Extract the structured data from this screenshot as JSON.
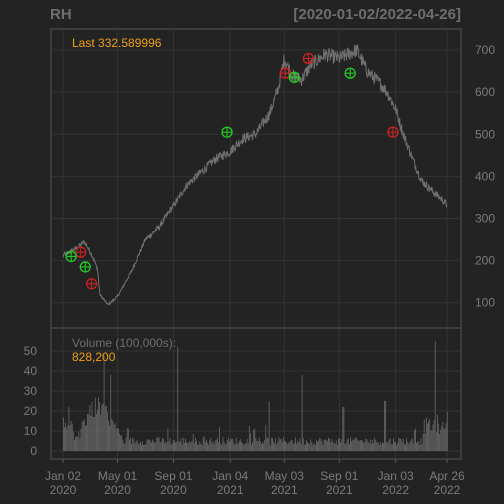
{
  "chart_data": [
    {
      "type": "line",
      "title": "RH",
      "date_range": "[2020-01-02/2022-04-26]",
      "annotation": "Last 332.589996",
      "ylim": [
        40,
        750
      ],
      "y_ticks": [
        100,
        200,
        300,
        400,
        500,
        600,
        700
      ],
      "grid": true,
      "x_dates": [
        "2020-01-02",
        "2020-02-01",
        "2020-02-18",
        "2020-03-05",
        "2020-03-18",
        "2020-03-23",
        "2020-04-10",
        "2020-05-01",
        "2020-06-01",
        "2020-07-01",
        "2020-08-01",
        "2020-08-25",
        "2020-09-01",
        "2020-10-01",
        "2020-11-01",
        "2020-12-01",
        "2021-01-04",
        "2021-02-01",
        "2021-03-01",
        "2021-04-01",
        "2021-04-20",
        "2021-05-03",
        "2021-05-20",
        "2021-06-10",
        "2021-07-01",
        "2021-08-01",
        "2021-09-01",
        "2021-09-20",
        "2021-10-10",
        "2021-11-01",
        "2021-12-01",
        "2021-12-15",
        "2022-01-03",
        "2022-01-20",
        "2022-02-10",
        "2022-03-01",
        "2022-03-20",
        "2022-04-10",
        "2022-04-26"
      ],
      "close": [
        212,
        230,
        245,
        215,
        180,
        120,
        95,
        115,
        175,
        250,
        280,
        320,
        330,
        380,
        410,
        440,
        460,
        490,
        500,
        550,
        610,
        680,
        640,
        630,
        665,
        690,
        680,
        690,
        700,
        650,
        620,
        600,
        560,
        500,
        440,
        390,
        370,
        350,
        332.59
      ],
      "buy_signals": [
        {
          "date": "2020-01-20",
          "price": 210
        },
        {
          "date": "2020-02-20",
          "price": 185
        },
        {
          "date": "2020-12-28",
          "price": 505
        },
        {
          "date": "2021-05-25",
          "price": 635
        },
        {
          "date": "2021-09-25",
          "price": 645
        }
      ],
      "sell_signals": [
        {
          "date": "2020-02-10",
          "price": 220
        },
        {
          "date": "2020-03-05",
          "price": 145
        },
        {
          "date": "2021-05-05",
          "price": 645
        },
        {
          "date": "2021-06-25",
          "price": 680
        },
        {
          "date": "2021-12-28",
          "price": 505
        }
      ]
    },
    {
      "type": "bar",
      "title": "Volume (100,000s):",
      "annotation": "828,200",
      "ylim": [
        0,
        55
      ],
      "y_ticks": [
        0,
        10,
        20,
        30,
        40,
        50
      ],
      "x_ticks": [
        {
          "date": "2020-01-02",
          "label": "Jan 02",
          "year": "2020"
        },
        {
          "date": "2020-05-01",
          "label": "May 01",
          "year": "2020"
        },
        {
          "date": "2020-09-01",
          "label": "Sep 01",
          "year": "2020"
        },
        {
          "date": "2021-01-04",
          "label": "Jan 04",
          "year": "2021"
        },
        {
          "date": "2021-05-03",
          "label": "May 03",
          "year": "2021"
        },
        {
          "date": "2021-09-01",
          "label": "Sep 01",
          "year": "2021"
        },
        {
          "date": "2022-01-03",
          "label": "Jan 03",
          "year": "2022"
        },
        {
          "date": "2022-04-26",
          "label": "Apr 26",
          "year": "2022"
        }
      ],
      "spikes": [
        {
          "date": "2020-01-15",
          "value": 22
        },
        {
          "date": "2020-04-01",
          "value": 48
        },
        {
          "date": "2020-04-15",
          "value": 38
        },
        {
          "date": "2020-09-10",
          "value": 52
        },
        {
          "date": "2020-12-10",
          "value": 12
        },
        {
          "date": "2021-03-30",
          "value": 25
        },
        {
          "date": "2021-06-10",
          "value": 38
        },
        {
          "date": "2021-09-09",
          "value": 22
        },
        {
          "date": "2021-12-10",
          "value": 25
        },
        {
          "date": "2022-03-31",
          "value": 55
        }
      ]
    }
  ],
  "colors": {
    "background": "#232323",
    "panel_border": "#555555",
    "grid": "#333333",
    "price_line": "#707070",
    "volume_bar": "#6a6a6a",
    "buy_marker": "#22cc22",
    "sell_marker": "#cc2222",
    "annotation": "#f0a010"
  }
}
